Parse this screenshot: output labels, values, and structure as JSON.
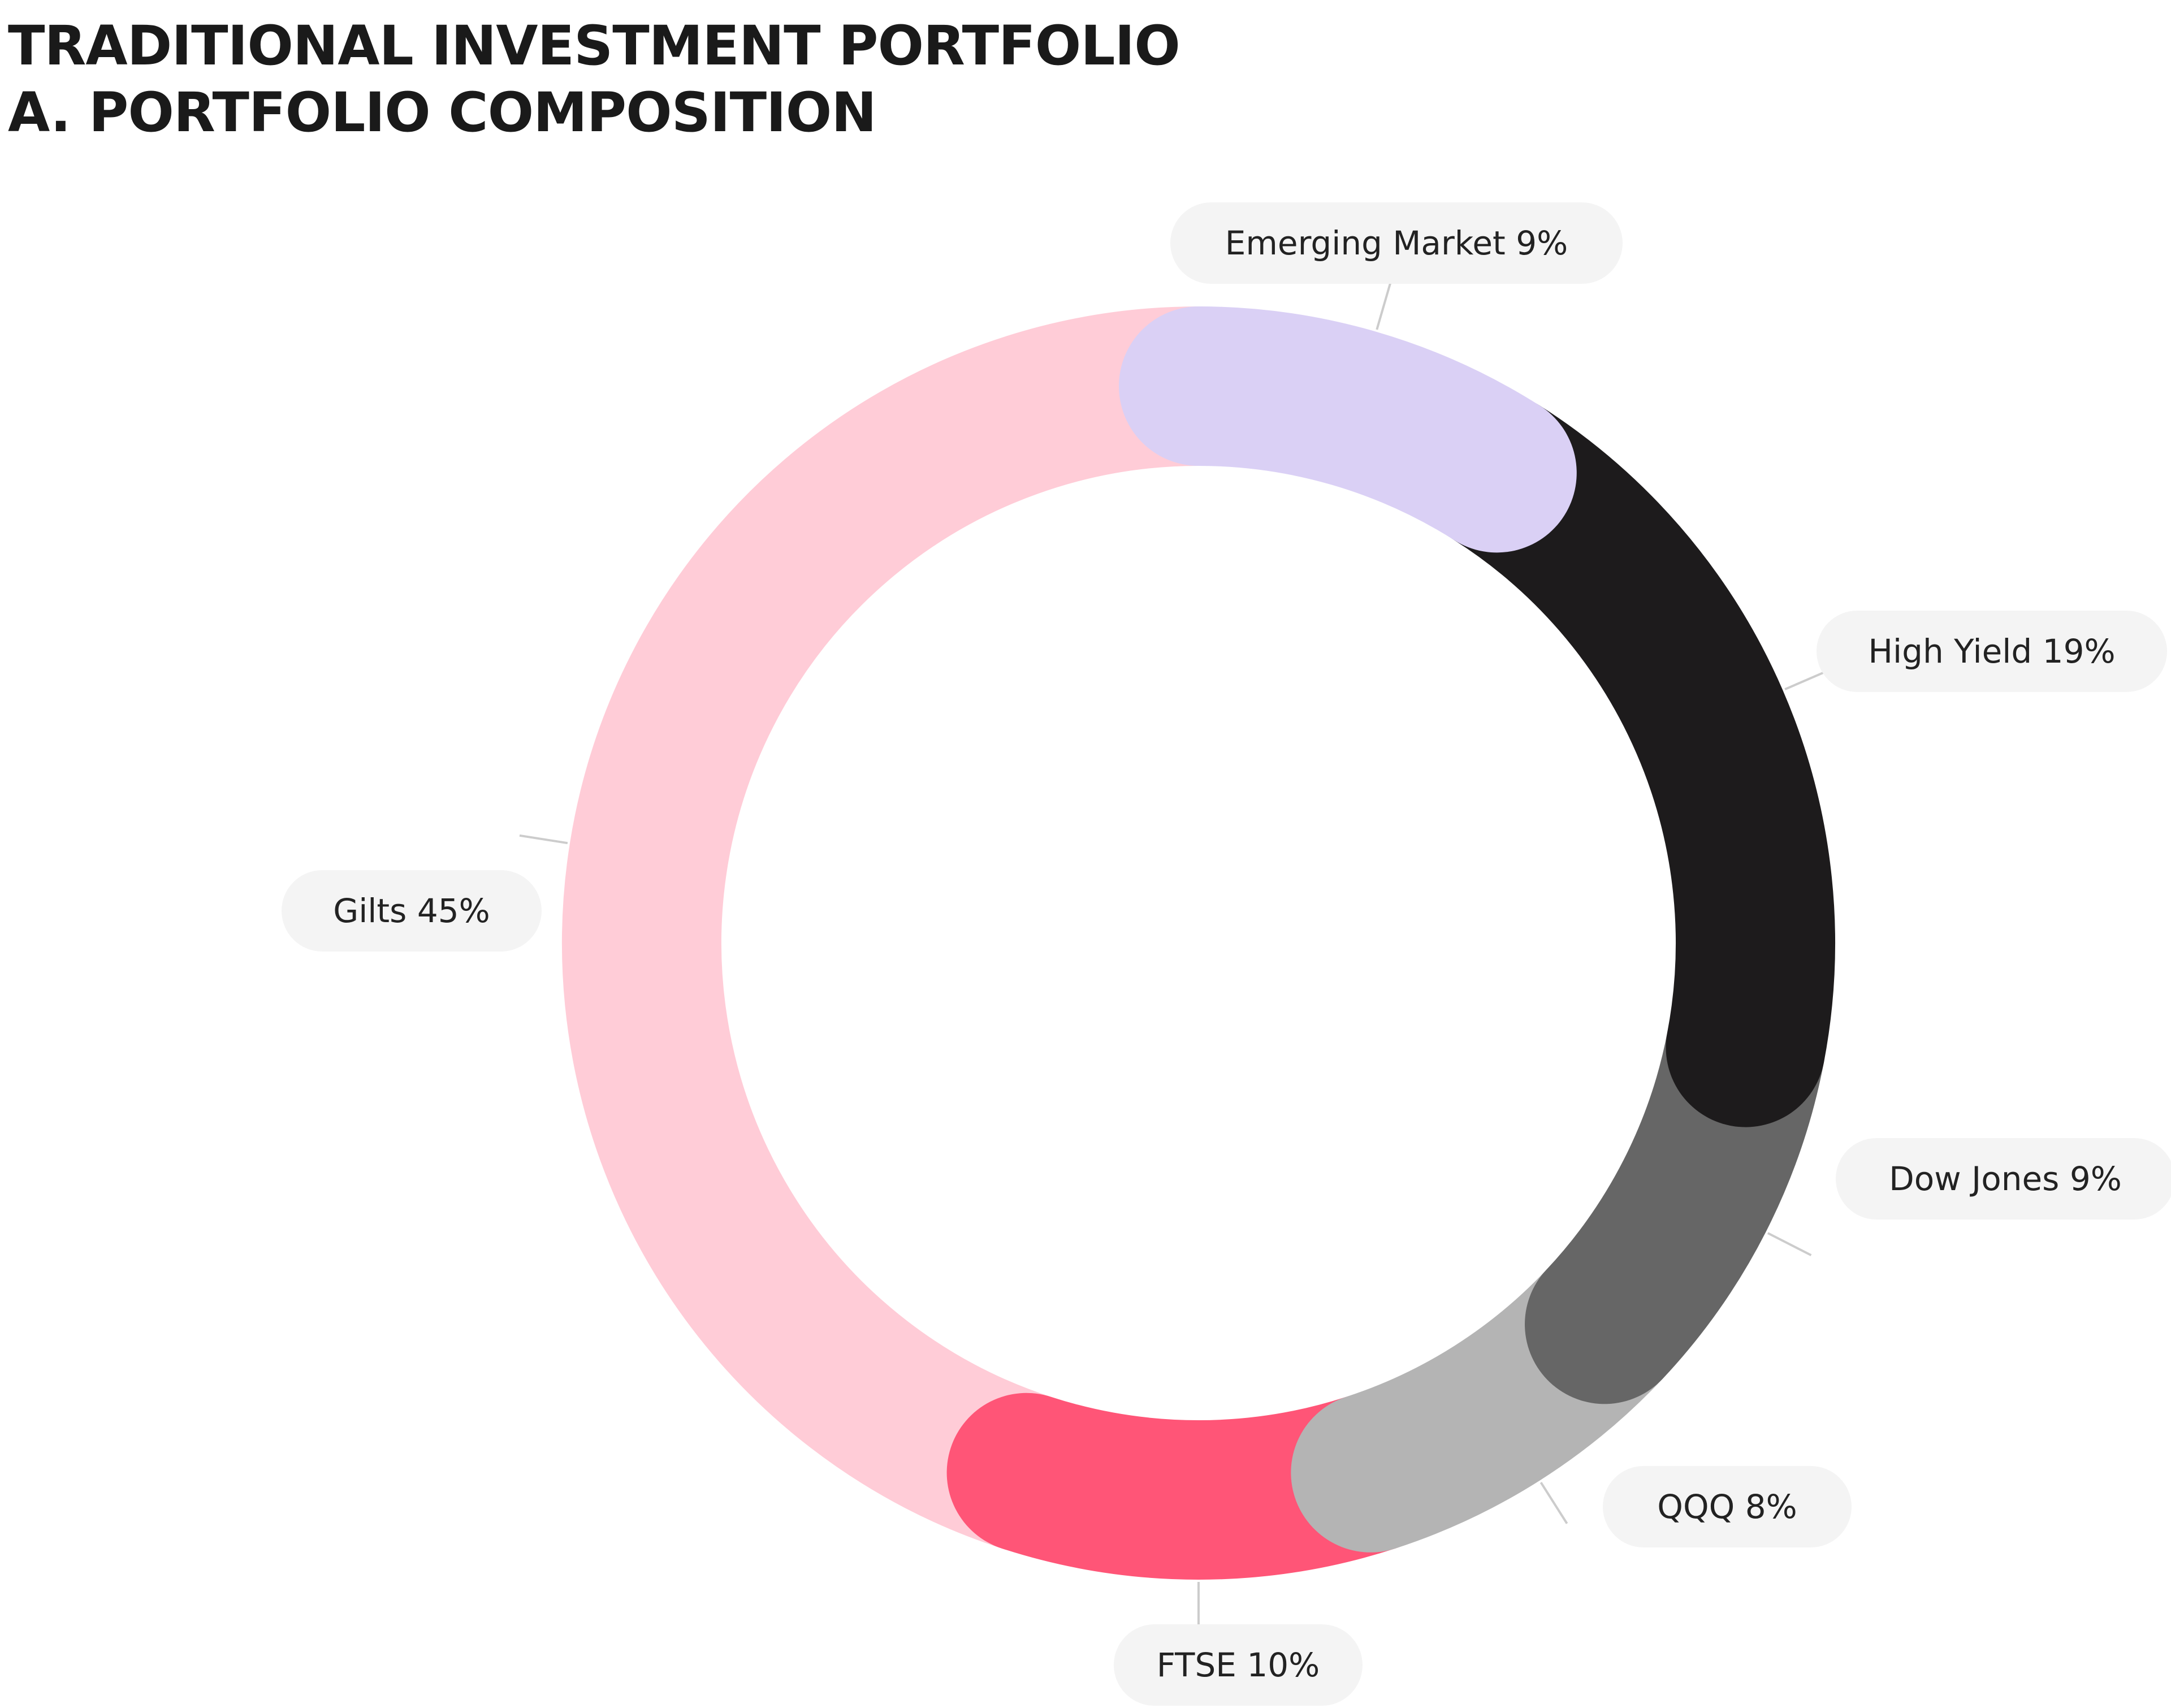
{
  "header": {
    "title": "TRADITIONAL INVESTMENT PORTFOLIO",
    "subtitle": "A. PORTFOLIO COMPOSITION"
  },
  "chart_data": {
    "type": "pie",
    "variant": "donut",
    "start_angle_deg": 0,
    "direction": "clockwise",
    "rounded_ends": true,
    "legend": "none",
    "slices": [
      {
        "label": "Emerging Market",
        "value": 9,
        "display": "Emerging Market 9%",
        "color": "#dad0f5"
      },
      {
        "label": "High Yield",
        "value": 19,
        "display": "High Yield 19%",
        "color": "#1d1b1c"
      },
      {
        "label": "Dow Jones",
        "value": 9,
        "display": "Dow Jones 9%",
        "color": "#666666"
      },
      {
        "label": "QQQ",
        "value": 8,
        "display": "QQQ 8%",
        "color": "#b4b4b4"
      },
      {
        "label": "FTSE",
        "value": 10,
        "display": "FTSE 10%",
        "color": "#ff5577"
      },
      {
        "label": "Gilts",
        "value": 45,
        "display": "Gilts 45%",
        "color": "#ffccd7"
      }
    ],
    "label_style": {
      "background": "#f4f4f4",
      "leader_color": "#cccccc"
    }
  }
}
